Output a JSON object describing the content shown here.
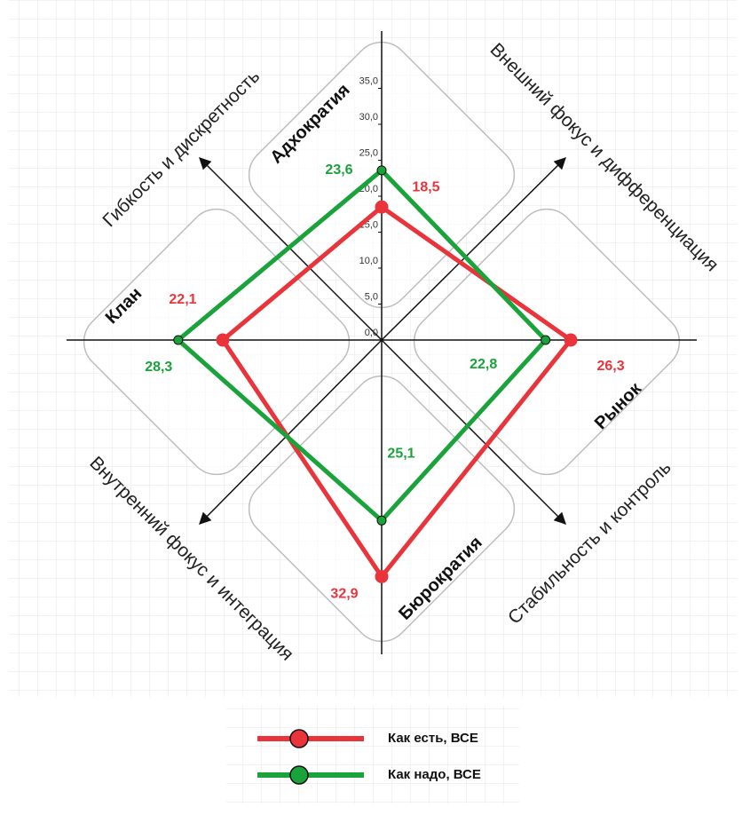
{
  "chart_data": {
    "type": "radar",
    "categories": [
      "Адхократия",
      "Рынок",
      "Бюрократия",
      "Клан"
    ],
    "series": [
      {
        "name": "Как есть, ВСЕ",
        "color": "#e8343a",
        "values": [
          18.5,
          26.3,
          32.9,
          22.1
        ],
        "value_labels": [
          "18,5",
          "26,3",
          "32,9",
          "22,1"
        ]
      },
      {
        "name": "Как надо, ВСЕ",
        "color": "#1aa33a",
        "values": [
          23.6,
          22.8,
          25.1,
          28.3
        ],
        "value_labels": [
          "23,6",
          "22,8",
          "25,1",
          "28,3"
        ]
      }
    ],
    "ylim": [
      0,
      35
    ],
    "yticks": [
      {
        "value": 0,
        "label": "0,0"
      },
      {
        "value": 5,
        "label": "5,0"
      },
      {
        "value": 10,
        "label": "10,0"
      },
      {
        "value": 15,
        "label": "15,0"
      },
      {
        "value": 20,
        "label": "20,0"
      },
      {
        "value": 25,
        "label": "25,0"
      },
      {
        "value": 30,
        "label": "30,0"
      },
      {
        "value": 35,
        "label": "35,0"
      }
    ],
    "annotations": [
      "Гибкость и дискретность",
      "Внешний фокус и дифференциация",
      "Стабильность и контроль",
      "Внутренний фокус и интеграция"
    ],
    "legend": "bottom"
  }
}
